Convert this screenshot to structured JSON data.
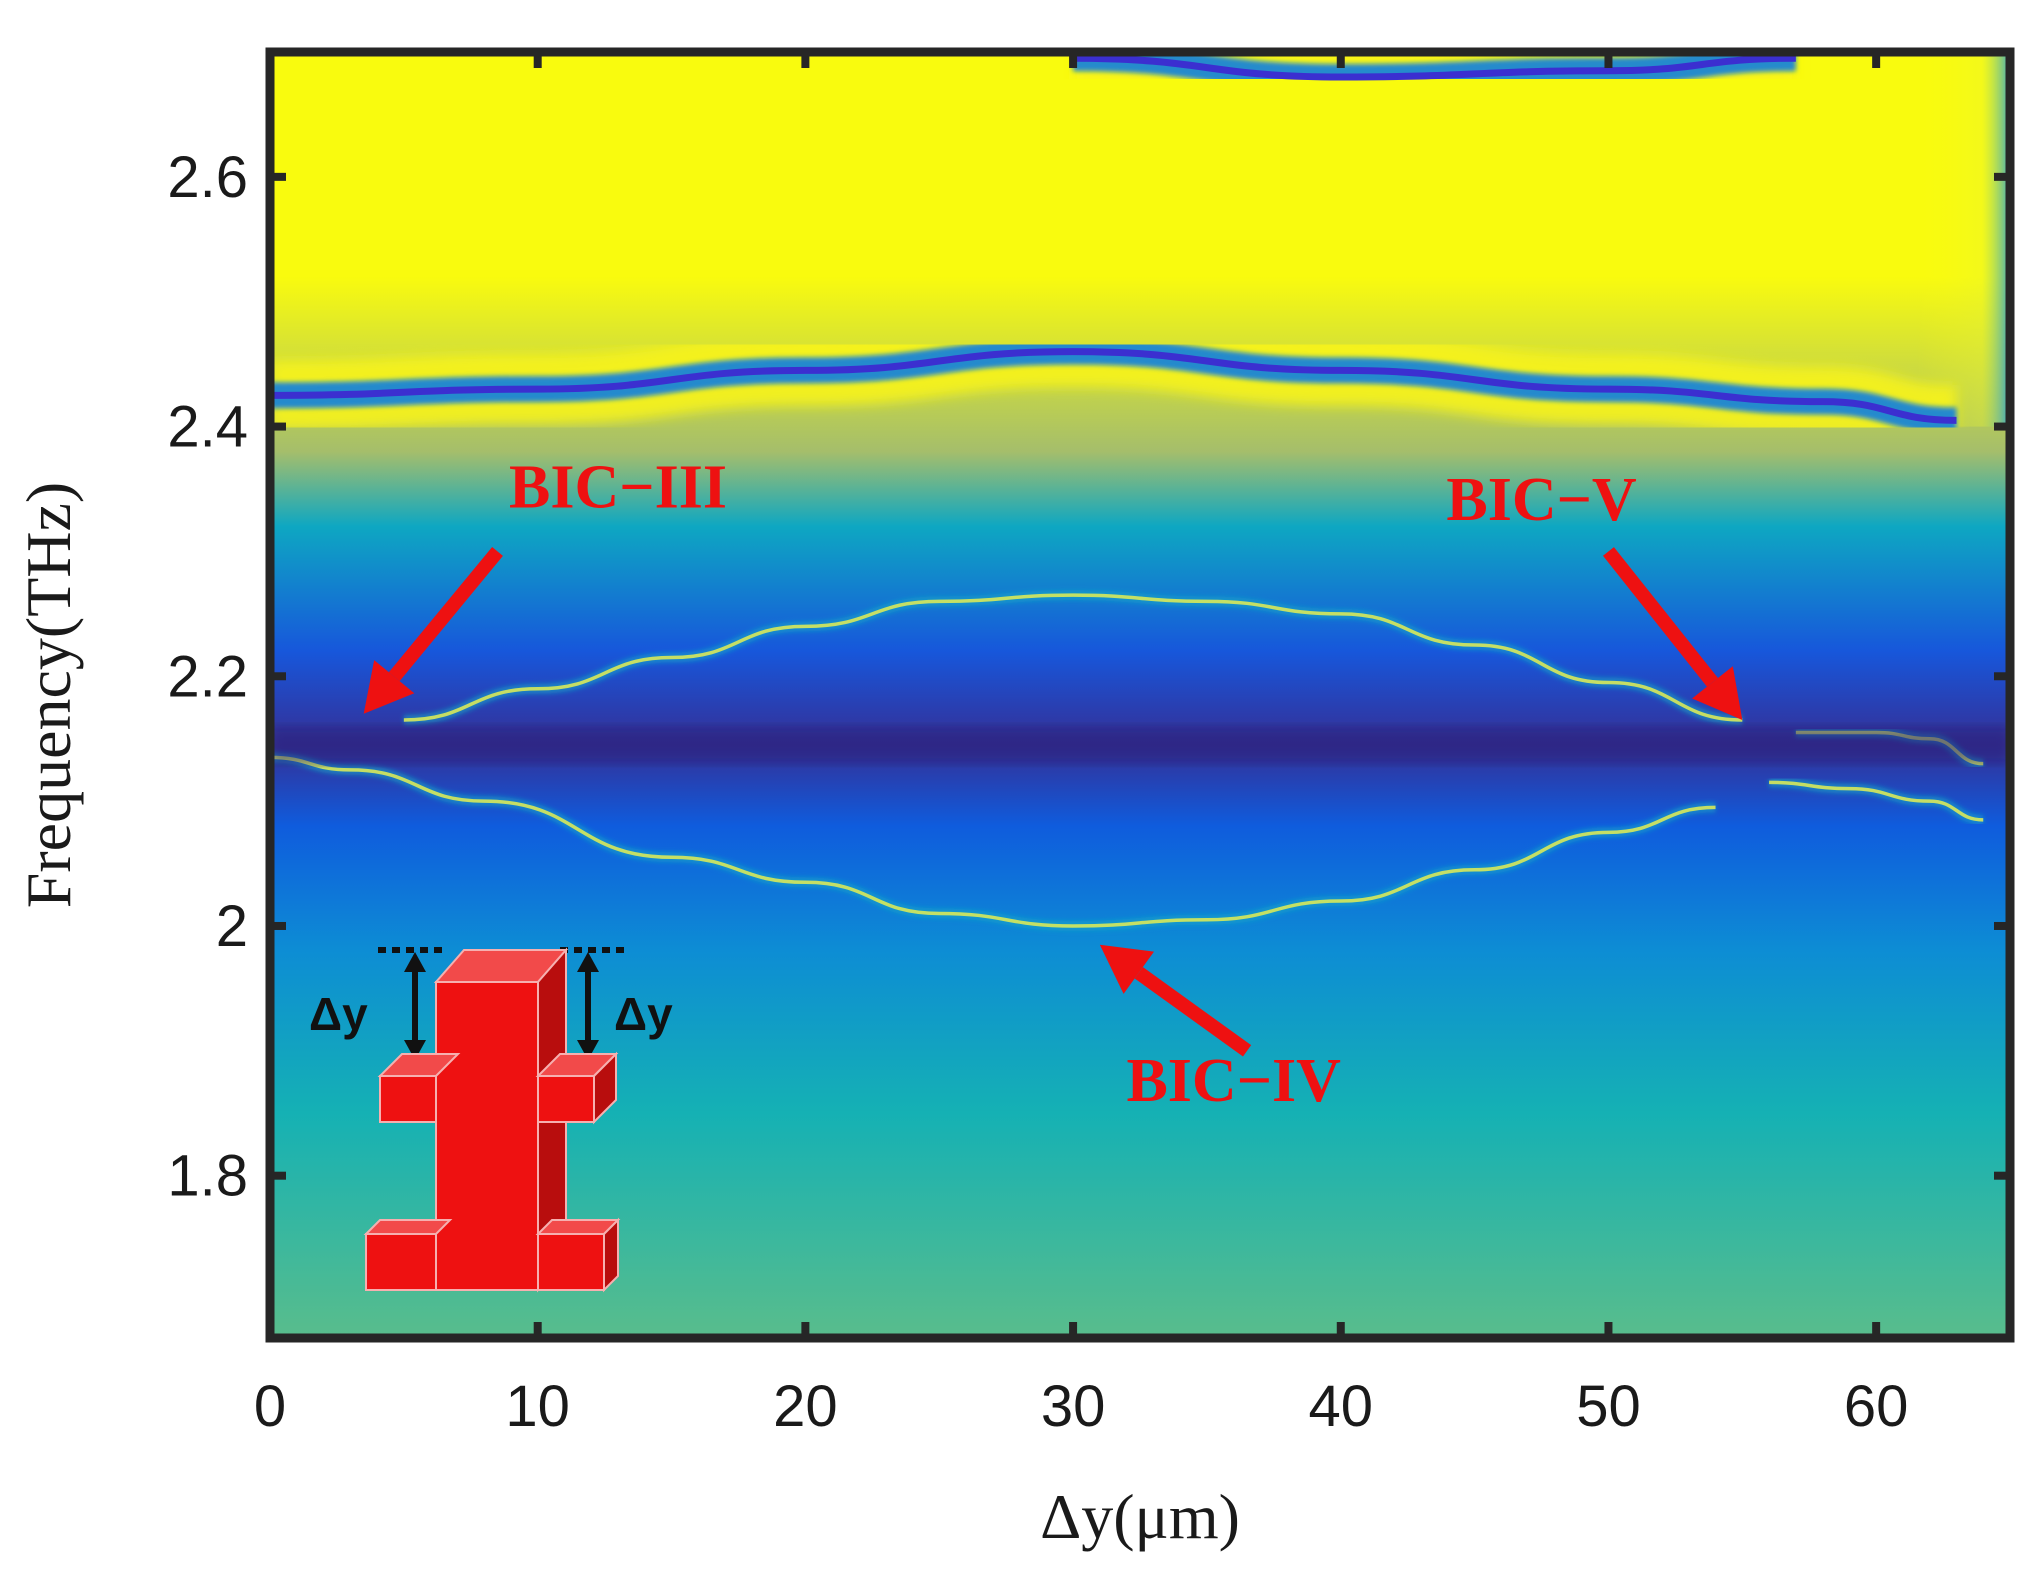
{
  "chart_data": {
    "type": "heatmap",
    "title": "",
    "xlabel": "Δy(μm)",
    "ylabel": "Frequency(THz)",
    "xlim": [
      0,
      65
    ],
    "ylim": [
      1.67,
      2.7
    ],
    "x_ticks": [
      0,
      10,
      20,
      30,
      40,
      50,
      60
    ],
    "x_tick_labels": [
      "0",
      "10",
      "20",
      "30",
      "40",
      "50",
      "60"
    ],
    "y_ticks": [
      1.8,
      2.0,
      2.2,
      2.4,
      2.6
    ],
    "y_tick_labels": [
      "1.8",
      "2",
      "2.2",
      "2.4",
      "2.6"
    ],
    "colormap": "parula",
    "colorbar": false,
    "grid": false,
    "background_frequency_scale": [
      {
        "f": 1.67,
        "level": 0.6
      },
      {
        "f": 1.85,
        "level": 0.5
      },
      {
        "f": 1.98,
        "level": 0.35
      },
      {
        "f": 2.08,
        "level": 0.2
      },
      {
        "f": 2.145,
        "level": 0.02
      },
      {
        "f": 2.22,
        "level": 0.18
      },
      {
        "f": 2.32,
        "level": 0.45
      },
      {
        "f": 2.38,
        "level": 0.7
      },
      {
        "f": 2.52,
        "level": 1.0
      },
      {
        "f": 2.7,
        "level": 1.0
      }
    ],
    "resonance_bands": [
      {
        "name": "upper band",
        "type": "dip",
        "points": [
          [
            0,
            2.425
          ],
          [
            10,
            2.43
          ],
          [
            20,
            2.445
          ],
          [
            30,
            2.46
          ],
          [
            40,
            2.445
          ],
          [
            50,
            2.43
          ],
          [
            58,
            2.42
          ],
          [
            63,
            2.405
          ]
        ]
      },
      {
        "name": "top band",
        "type": "dip",
        "points": [
          [
            30,
            2.695
          ],
          [
            40,
            2.68
          ],
          [
            50,
            2.685
          ],
          [
            57,
            2.695
          ]
        ]
      },
      {
        "name": "BIC-III/V arc",
        "type": "peak",
        "points": [
          [
            5,
            2.165
          ],
          [
            10,
            2.19
          ],
          [
            15,
            2.215
          ],
          [
            20,
            2.24
          ],
          [
            25,
            2.26
          ],
          [
            30,
            2.265
          ],
          [
            35,
            2.26
          ],
          [
            40,
            2.25
          ],
          [
            45,
            2.225
          ],
          [
            50,
            2.195
          ],
          [
            55,
            2.165
          ]
        ]
      },
      {
        "name": "BIC-IV arc",
        "type": "peak",
        "points": [
          [
            0,
            2.135
          ],
          [
            3,
            2.125
          ],
          [
            8,
            2.1
          ],
          [
            15,
            2.055
          ],
          [
            20,
            2.035
          ],
          [
            25,
            2.01
          ],
          [
            30,
            2.0
          ],
          [
            35,
            2.005
          ],
          [
            40,
            2.02
          ],
          [
            45,
            2.045
          ],
          [
            50,
            2.075
          ],
          [
            54,
            2.095
          ]
        ]
      },
      {
        "name": "right branch",
        "type": "peak",
        "points": [
          [
            56,
            2.115
          ],
          [
            59,
            2.11
          ],
          [
            62,
            2.1
          ],
          [
            64,
            2.085
          ]
        ]
      },
      {
        "name": "right upper branch",
        "type": "peak",
        "points": [
          [
            57,
            2.155
          ],
          [
            60,
            2.155
          ],
          [
            62,
            2.15
          ],
          [
            64,
            2.13
          ]
        ]
      }
    ],
    "annotations": [
      {
        "text": "BIC−III",
        "text_at": [
          13,
          2.335
        ],
        "arrow_from": [
          8.5,
          2.3
        ],
        "arrow_to": [
          3.5,
          2.17
        ]
      },
      {
        "text": "BIC−V",
        "text_at": [
          47.5,
          2.325
        ],
        "arrow_from": [
          50,
          2.3
        ],
        "arrow_to": [
          55,
          2.165
        ]
      },
      {
        "text": "BIC−IV",
        "text_at": [
          36,
          1.86
        ],
        "arrow_from": [
          36.5,
          1.9
        ],
        "arrow_to": [
          31,
          1.985
        ]
      }
    ],
    "inset": {
      "label_left": "Δy",
      "label_right": "Δy",
      "color": "#ee1111"
    }
  }
}
